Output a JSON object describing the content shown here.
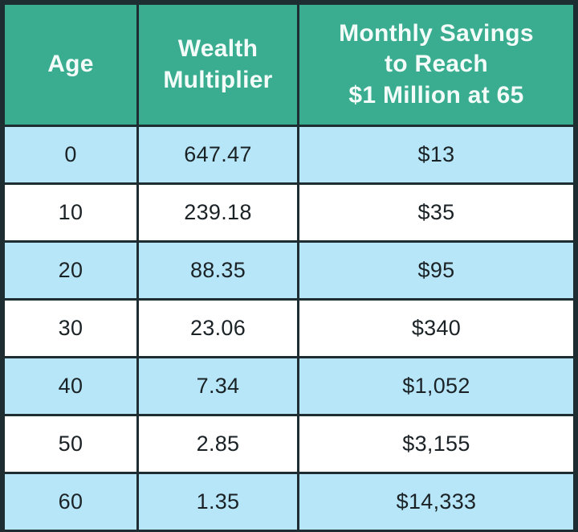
{
  "colors": {
    "header_bg": "#3aad90",
    "header_text": "#f4fcf9",
    "row_alt_bg": "#b7e6f8",
    "row_plain_bg": "#ffffff",
    "border": "#1d2d31",
    "data_text": "#1b2226"
  },
  "table": {
    "headers": {
      "age": "Age",
      "multiplier": "Wealth\nMultiplier",
      "savings": "Monthly Savings\nto Reach\n$1 Million at 65"
    },
    "rows": [
      {
        "age": "0",
        "multiplier": "647.47",
        "savings": "$13"
      },
      {
        "age": "10",
        "multiplier": "239.18",
        "savings": "$35"
      },
      {
        "age": "20",
        "multiplier": "88.35",
        "savings": "$95"
      },
      {
        "age": "30",
        "multiplier": "23.06",
        "savings": "$340"
      },
      {
        "age": "40",
        "multiplier": "7.34",
        "savings": "$1,052"
      },
      {
        "age": "50",
        "multiplier": "2.85",
        "savings": "$3,155"
      },
      {
        "age": "60",
        "multiplier": "1.35",
        "savings": "$14,333"
      }
    ]
  },
  "chart_data": {
    "type": "table",
    "title": "",
    "columns": [
      "Age",
      "Wealth Multiplier",
      "Monthly Savings to Reach $1 Million at 65"
    ],
    "categories": [
      0,
      10,
      20,
      30,
      40,
      50,
      60
    ],
    "series": [
      {
        "name": "Wealth Multiplier",
        "values": [
          647.47,
          239.18,
          88.35,
          23.06,
          7.34,
          2.85,
          1.35
        ]
      },
      {
        "name": "Monthly Savings to Reach $1 Million at 65",
        "values": [
          13,
          35,
          95,
          340,
          1052,
          3155,
          14333
        ]
      }
    ]
  }
}
